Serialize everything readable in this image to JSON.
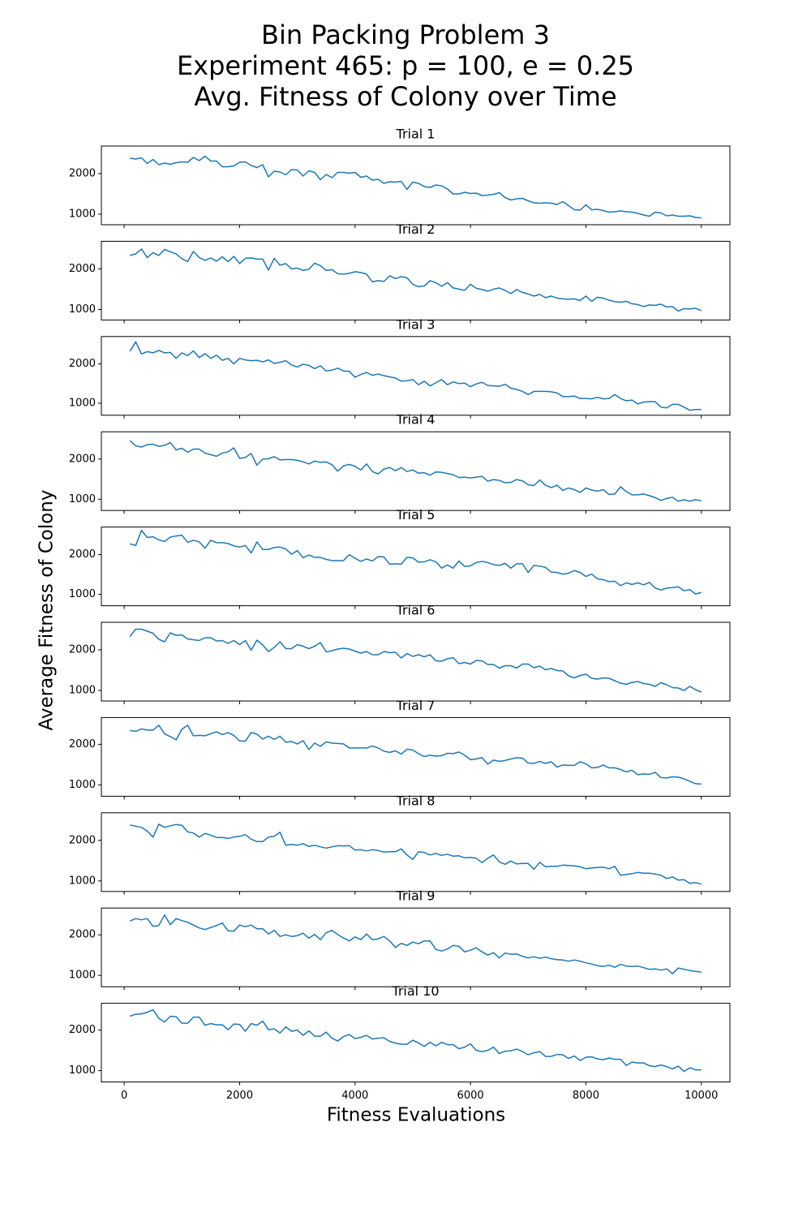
{
  "chart_data": {
    "type": "line",
    "title": [
      "Bin Packing Problem 3",
      "Experiment 465: p = 100, e = 0.25",
      "Avg. Fitness of Colony over Time"
    ],
    "x_label": "Fitness Evaluations",
    "y_label": "Average Fitness of Colony",
    "xlim": [
      -395,
      10495
    ],
    "xticks": [
      0,
      2000,
      4000,
      6000,
      8000,
      10000
    ],
    "yticks": [
      1000,
      2000
    ],
    "x": [
      100,
      200,
      300,
      400,
      500,
      600,
      700,
      800,
      900,
      1000,
      1100,
      1200,
      1300,
      1400,
      1500,
      1600,
      1700,
      1800,
      1900,
      2000,
      2100,
      2200,
      2300,
      2400,
      2500,
      2600,
      2700,
      2800,
      2900,
      3000,
      3100,
      3200,
      3300,
      3400,
      3500,
      3600,
      3700,
      3800,
      3900,
      4000,
      4100,
      4200,
      4300,
      4400,
      4500,
      4600,
      4700,
      4800,
      4900,
      5000,
      5100,
      5200,
      5300,
      5400,
      5500,
      5600,
      5700,
      5800,
      5900,
      6000,
      6100,
      6200,
      6300,
      6400,
      6500,
      6600,
      6700,
      6800,
      6900,
      7000,
      7100,
      7200,
      7300,
      7400,
      7500,
      7600,
      7700,
      7800,
      7900,
      8000,
      8100,
      8200,
      8300,
      8400,
      8500,
      8600,
      8700,
      8800,
      8900,
      9000,
      9100,
      9200,
      9300,
      9400,
      9500,
      9600,
      9700,
      9800,
      9900,
      10000
    ],
    "series": [
      {
        "name": "Trial 1",
        "color": "#1f77b4",
        "ylim": [
          740,
          2680
        ],
        "values": [
          2380,
          2360,
          2390,
          2250,
          2350,
          2220,
          2260,
          2230,
          2270,
          2290,
          2280,
          2400,
          2320,
          2430,
          2310,
          2310,
          2170,
          2170,
          2190,
          2280,
          2290,
          2200,
          2150,
          2220,
          1920,
          2060,
          2040,
          1970,
          2100,
          2090,
          1940,
          2070,
          2030,
          1850,
          1980,
          1900,
          2030,
          2030,
          2010,
          2030,
          1910,
          1940,
          1840,
          1860,
          1760,
          1800,
          1790,
          1810,
          1610,
          1790,
          1760,
          1680,
          1660,
          1720,
          1700,
          1620,
          1500,
          1500,
          1540,
          1510,
          1520,
          1460,
          1470,
          1490,
          1530,
          1410,
          1350,
          1380,
          1390,
          1330,
          1280,
          1270,
          1280,
          1270,
          1240,
          1310,
          1210,
          1110,
          1100,
          1230,
          1110,
          1120,
          1090,
          1050,
          1060,
          1080,
          1060,
          1050,
          1020,
          980,
          950,
          1050,
          1030,
          960,
          980,
          950,
          950,
          960,
          920,
          910
        ]
      },
      {
        "name": "Trial 2",
        "color": "#1f77b4",
        "ylim": [
          740,
          2680
        ],
        "values": [
          2330,
          2370,
          2490,
          2280,
          2400,
          2330,
          2480,
          2420,
          2370,
          2250,
          2180,
          2430,
          2280,
          2210,
          2270,
          2190,
          2300,
          2180,
          2310,
          2130,
          2260,
          2270,
          2240,
          2240,
          1970,
          2260,
          2090,
          2130,
          2000,
          2020,
          1960,
          1990,
          2140,
          2080,
          1960,
          1980,
          1880,
          1870,
          1890,
          1930,
          1910,
          1870,
          1680,
          1710,
          1690,
          1830,
          1760,
          1810,
          1780,
          1620,
          1560,
          1580,
          1710,
          1660,
          1570,
          1660,
          1530,
          1500,
          1470,
          1620,
          1520,
          1490,
          1450,
          1500,
          1530,
          1470,
          1390,
          1490,
          1420,
          1380,
          1330,
          1370,
          1290,
          1330,
          1280,
          1260,
          1250,
          1260,
          1220,
          1330,
          1200,
          1300,
          1280,
          1230,
          1190,
          1180,
          1200,
          1140,
          1120,
          1070,
          1110,
          1100,
          1130,
          1060,
          1070,
          960,
          1020,
          1010,
          1030,
          970
        ]
      },
      {
        "name": "Trial 3",
        "color": "#1f77b4",
        "ylim": [
          694,
          2694
        ],
        "values": [
          2320,
          2560,
          2250,
          2310,
          2280,
          2340,
          2280,
          2290,
          2140,
          2280,
          2210,
          2330,
          2160,
          2260,
          2140,
          2220,
          2090,
          2140,
          2000,
          2140,
          2100,
          2080,
          2090,
          2050,
          2100,
          2010,
          2040,
          2080,
          1970,
          1920,
          1990,
          1960,
          1880,
          1950,
          1820,
          1840,
          1890,
          1820,
          1810,
          1660,
          1730,
          1780,
          1710,
          1740,
          1700,
          1670,
          1640,
          1560,
          1570,
          1600,
          1470,
          1560,
          1440,
          1520,
          1600,
          1470,
          1540,
          1500,
          1510,
          1420,
          1490,
          1530,
          1450,
          1440,
          1430,
          1480,
          1380,
          1350,
          1300,
          1220,
          1300,
          1300,
          1300,
          1290,
          1260,
          1170,
          1170,
          1180,
          1120,
          1120,
          1110,
          1150,
          1110,
          1120,
          1220,
          1120,
          1060,
          1080,
          980,
          1030,
          1040,
          1040,
          900,
          880,
          970,
          970,
          900,
          820,
          840,
          840
        ]
      },
      {
        "name": "Trial 4",
        "color": "#1f77b4",
        "ylim": [
          720,
          2680
        ],
        "values": [
          2460,
          2330,
          2300,
          2360,
          2370,
          2320,
          2340,
          2410,
          2230,
          2270,
          2170,
          2250,
          2250,
          2150,
          2110,
          2070,
          2150,
          2180,
          2280,
          2020,
          2040,
          2140,
          1850,
          2000,
          2010,
          2060,
          1980,
          1990,
          1990,
          1970,
          1930,
          1880,
          1950,
          1920,
          1930,
          1860,
          1700,
          1830,
          1870,
          1820,
          1730,
          1880,
          1690,
          1630,
          1750,
          1790,
          1710,
          1790,
          1690,
          1730,
          1650,
          1660,
          1600,
          1680,
          1670,
          1640,
          1610,
          1540,
          1550,
          1530,
          1550,
          1570,
          1450,
          1490,
          1470,
          1410,
          1420,
          1490,
          1460,
          1360,
          1340,
          1480,
          1350,
          1290,
          1350,
          1220,
          1280,
          1240,
          1170,
          1280,
          1230,
          1200,
          1240,
          1120,
          1130,
          1310,
          1190,
          1110,
          1110,
          1130,
          1090,
          1040,
          970,
          1020,
          1050,
          950,
          990,
          950,
          990,
          960
        ]
      },
      {
        "name": "Trial 5",
        "color": "#1f77b4",
        "ylim": [
          714,
          2694
        ],
        "values": [
          2270,
          2230,
          2610,
          2430,
          2450,
          2370,
          2330,
          2440,
          2470,
          2490,
          2310,
          2360,
          2320,
          2160,
          2360,
          2300,
          2300,
          2280,
          2220,
          2190,
          2230,
          2040,
          2320,
          2130,
          2130,
          2180,
          2190,
          2140,
          2010,
          2100,
          1920,
          1990,
          1930,
          1930,
          1880,
          1850,
          1850,
          1850,
          2000,
          1910,
          1830,
          1890,
          1840,
          1950,
          1940,
          1760,
          1770,
          1760,
          1930,
          1920,
          1810,
          1820,
          1870,
          1820,
          1660,
          1740,
          1660,
          1840,
          1700,
          1720,
          1800,
          1830,
          1800,
          1750,
          1730,
          1780,
          1660,
          1770,
          1770,
          1550,
          1730,
          1710,
          1680,
          1560,
          1550,
          1510,
          1530,
          1600,
          1550,
          1450,
          1510,
          1390,
          1370,
          1320,
          1330,
          1220,
          1290,
          1250,
          1290,
          1240,
          1300,
          1160,
          1110,
          1160,
          1170,
          1190,
          1090,
          1120,
          1010,
          1050
        ]
      },
      {
        "name": "Trial 6",
        "color": "#1f77b4",
        "ylim": [
          740,
          2680
        ],
        "values": [
          2330,
          2510,
          2510,
          2460,
          2410,
          2260,
          2200,
          2420,
          2360,
          2370,
          2270,
          2250,
          2230,
          2300,
          2300,
          2220,
          2230,
          2160,
          2230,
          2130,
          2230,
          1990,
          2240,
          2120,
          1960,
          2060,
          2200,
          2030,
          2030,
          2130,
          2090,
          2030,
          2090,
          2180,
          1950,
          1980,
          2020,
          2040,
          2020,
          1970,
          1920,
          1960,
          1880,
          1880,
          1960,
          1930,
          1940,
          1800,
          1910,
          1840,
          1880,
          1830,
          1880,
          1730,
          1720,
          1780,
          1810,
          1660,
          1690,
          1650,
          1740,
          1730,
          1640,
          1640,
          1550,
          1610,
          1610,
          1550,
          1650,
          1650,
          1560,
          1600,
          1510,
          1540,
          1490,
          1480,
          1360,
          1310,
          1370,
          1400,
          1300,
          1280,
          1310,
          1300,
          1240,
          1180,
          1150,
          1200,
          1220,
          1170,
          1150,
          1100,
          1190,
          1140,
          1070,
          1060,
          1000,
          1100,
          1020,
          960
        ]
      },
      {
        "name": "Trial 7",
        "color": "#1f77b4",
        "ylim": [
          720,
          2660
        ],
        "values": [
          2340,
          2320,
          2380,
          2350,
          2350,
          2470,
          2260,
          2190,
          2110,
          2370,
          2470,
          2210,
          2220,
          2210,
          2260,
          2310,
          2240,
          2290,
          2220,
          2080,
          2080,
          2290,
          2250,
          2130,
          2200,
          2120,
          2200,
          2050,
          2070,
          2010,
          2090,
          1870,
          2030,
          1950,
          2060,
          2030,
          2020,
          2010,
          1910,
          1910,
          1910,
          1910,
          1960,
          1910,
          1830,
          1800,
          1840,
          1760,
          1880,
          1860,
          1770,
          1700,
          1730,
          1710,
          1720,
          1780,
          1770,
          1810,
          1730,
          1620,
          1640,
          1670,
          1510,
          1610,
          1580,
          1600,
          1640,
          1670,
          1660,
          1540,
          1530,
          1580,
          1530,
          1570,
          1440,
          1490,
          1480,
          1480,
          1570,
          1520,
          1420,
          1430,
          1490,
          1420,
          1420,
          1380,
          1320,
          1360,
          1250,
          1270,
          1260,
          1310,
          1180,
          1170,
          1200,
          1190,
          1150,
          1090,
          1030,
          1020
        ]
      },
      {
        "name": "Trial 8",
        "color": "#1f77b4",
        "ylim": [
          740,
          2680
        ],
        "values": [
          2380,
          2350,
          2320,
          2230,
          2080,
          2400,
          2320,
          2360,
          2390,
          2370,
          2210,
          2180,
          2080,
          2170,
          2130,
          2070,
          2070,
          2050,
          2080,
          2100,
          2140,
          2030,
          1970,
          1970,
          2080,
          2100,
          2200,
          1880,
          1900,
          1880,
          1920,
          1850,
          1880,
          1840,
          1810,
          1840,
          1870,
          1860,
          1870,
          1760,
          1770,
          1740,
          1770,
          1750,
          1710,
          1720,
          1720,
          1790,
          1640,
          1530,
          1720,
          1700,
          1640,
          1680,
          1630,
          1660,
          1610,
          1620,
          1570,
          1580,
          1560,
          1450,
          1560,
          1640,
          1470,
          1410,
          1490,
          1420,
          1430,
          1430,
          1290,
          1460,
          1350,
          1360,
          1360,
          1390,
          1380,
          1370,
          1350,
          1300,
          1320,
          1330,
          1340,
          1300,
          1360,
          1140,
          1160,
          1180,
          1210,
          1190,
          1190,
          1170,
          1140,
          1060,
          1100,
          1020,
          1030,
          940,
          960,
          920
        ]
      },
      {
        "name": "Trial 9",
        "color": "#1f77b4",
        "ylim": [
          720,
          2660
        ],
        "values": [
          2340,
          2400,
          2370,
          2400,
          2210,
          2230,
          2490,
          2250,
          2400,
          2350,
          2310,
          2240,
          2170,
          2130,
          2180,
          2230,
          2290,
          2100,
          2090,
          2240,
          2200,
          2240,
          2150,
          2150,
          2020,
          2110,
          1960,
          2000,
          1960,
          1980,
          2040,
          1920,
          2010,
          1880,
          2050,
          2110,
          2010,
          1920,
          1850,
          1950,
          1880,
          2020,
          1880,
          1900,
          1960,
          1850,
          1690,
          1790,
          1740,
          1820,
          1780,
          1850,
          1850,
          1640,
          1600,
          1650,
          1740,
          1720,
          1580,
          1620,
          1680,
          1580,
          1500,
          1560,
          1430,
          1550,
          1520,
          1530,
          1470,
          1430,
          1460,
          1420,
          1450,
          1410,
          1390,
          1380,
          1350,
          1380,
          1350,
          1310,
          1280,
          1240,
          1220,
          1250,
          1200,
          1270,
          1230,
          1220,
          1230,
          1190,
          1150,
          1160,
          1130,
          1160,
          1040,
          1180,
          1150,
          1120,
          1100,
          1080
        ]
      },
      {
        "name": "Trial 10",
        "color": "#1f77b4",
        "ylim": [
          720,
          2660
        ],
        "values": [
          2340,
          2390,
          2400,
          2440,
          2500,
          2290,
          2200,
          2340,
          2330,
          2170,
          2170,
          2320,
          2320,
          2120,
          2160,
          2130,
          2130,
          2010,
          2150,
          2140,
          1970,
          2160,
          2120,
          2220,
          2010,
          2030,
          1930,
          2080,
          1970,
          2000,
          1870,
          1980,
          1850,
          1850,
          1950,
          1800,
          1730,
          1840,
          1890,
          1790,
          1820,
          1870,
          1780,
          1800,
          1810,
          1720,
          1680,
          1650,
          1650,
          1750,
          1680,
          1600,
          1700,
          1610,
          1700,
          1640,
          1640,
          1540,
          1580,
          1660,
          1500,
          1470,
          1500,
          1580,
          1420,
          1480,
          1490,
          1530,
          1470,
          1390,
          1440,
          1470,
          1350,
          1350,
          1400,
          1390,
          1300,
          1360,
          1250,
          1330,
          1340,
          1290,
          1270,
          1310,
          1280,
          1280,
          1130,
          1210,
          1190,
          1190,
          1120,
          1100,
          1140,
          1100,
          1040,
          1110,
          980,
          1070,
          1020,
          1020
        ]
      }
    ]
  }
}
